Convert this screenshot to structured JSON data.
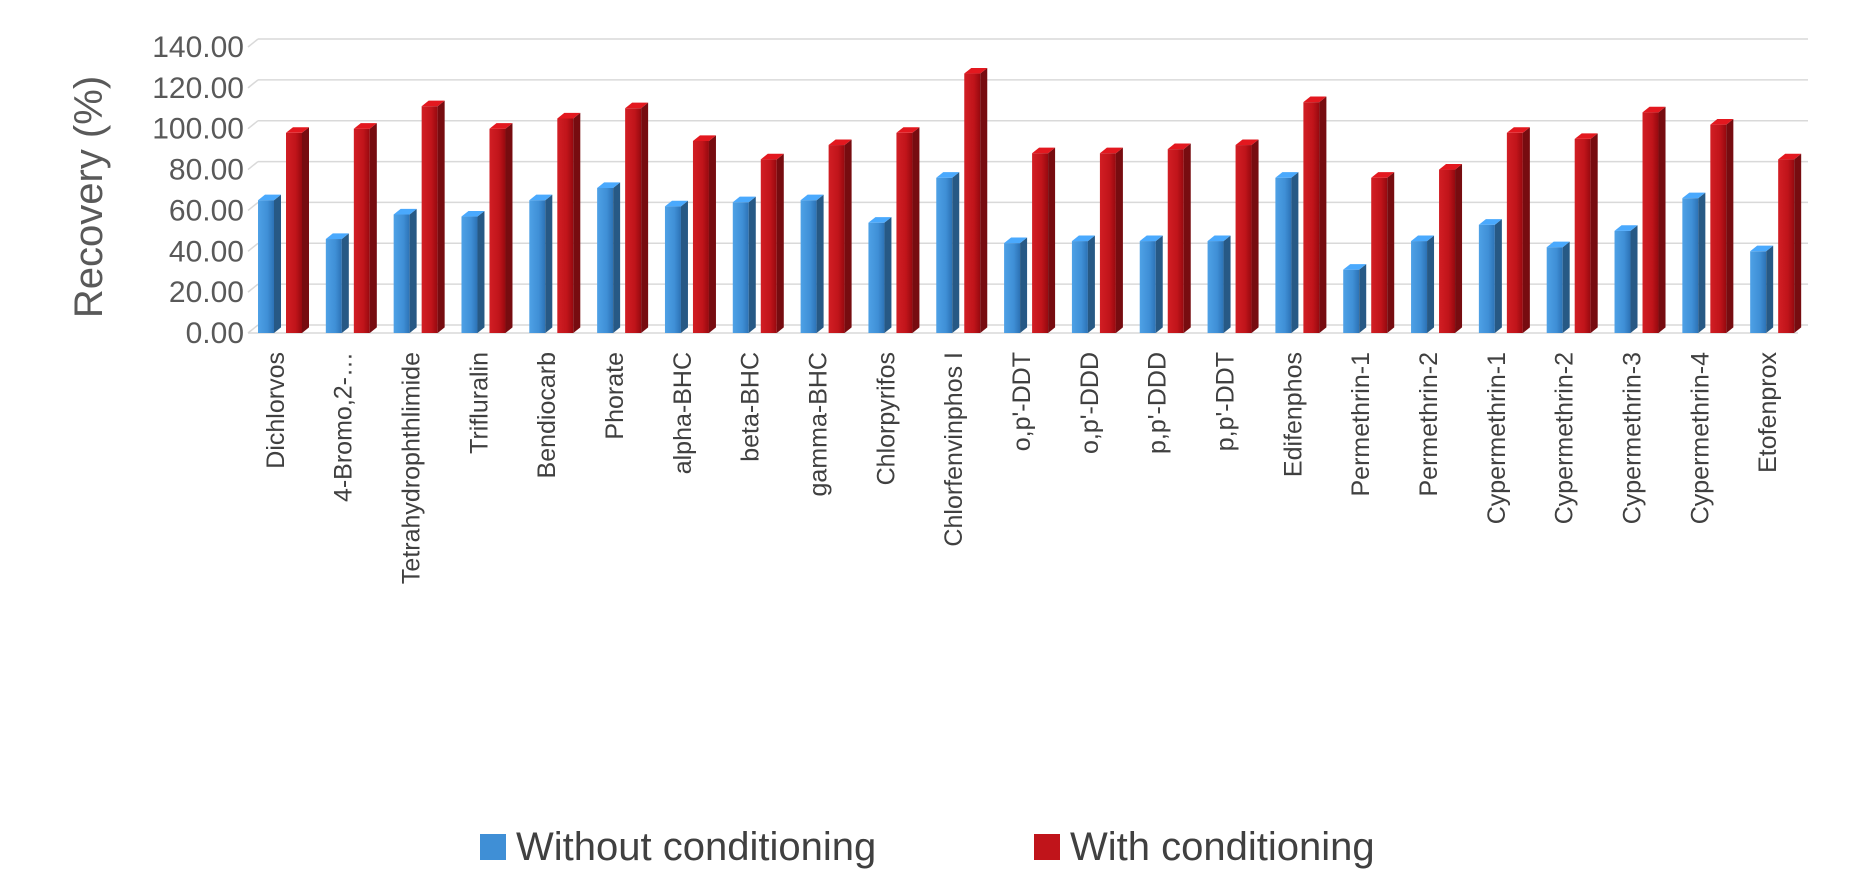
{
  "chart_data": {
    "type": "bar",
    "title": "",
    "xlabel": "",
    "ylabel": "Recovery (%)",
    "ylim": [
      0,
      140
    ],
    "yticks": [
      0,
      20,
      40,
      60,
      80,
      100,
      120,
      140
    ],
    "ytick_labels": [
      "0.00",
      "20.00",
      "40.00",
      "60.00",
      "80.00",
      "100.00",
      "120.00",
      "140.00"
    ],
    "grid": true,
    "legend_position": "bottom",
    "categories": [
      "Dichlorvos",
      "4-Bromo,2-…",
      "Tetrahydrophthlimide",
      "Trifluralin",
      "Bendiocarb",
      "Phorate",
      "alpha-BHC",
      "beta-BHC",
      "gamma-BHC",
      "Chlorpyrifos",
      "Chlorfenvinphos I",
      "o,p'-DDT",
      "o,p'-DDD",
      "p,p'-DDD",
      "p,p'-DDT",
      "Edifenphos",
      "Permethrin-1",
      "Permethrin-2",
      "Cypermethrin-1",
      "Cypermethrin-2",
      "Cypermethrin-3",
      "Cypermethrin-4",
      "Etofenprox"
    ],
    "series": [
      {
        "name": "Without conditioning",
        "color": "#3f8fd6",
        "values": [
          65,
          46,
          58,
          57,
          65,
          71,
          62,
          64,
          65,
          54,
          76,
          44,
          45,
          45,
          45,
          76,
          31,
          45,
          53,
          42,
          50,
          66,
          40
        ]
      },
      {
        "name": "With conditioning",
        "color": "#c0141a",
        "values": [
          98,
          100,
          111,
          100,
          105,
          110,
          94,
          85,
          92,
          98,
          127,
          88,
          88,
          90,
          92,
          113,
          76,
          80,
          98,
          95,
          108,
          102,
          85
        ]
      }
    ]
  }
}
